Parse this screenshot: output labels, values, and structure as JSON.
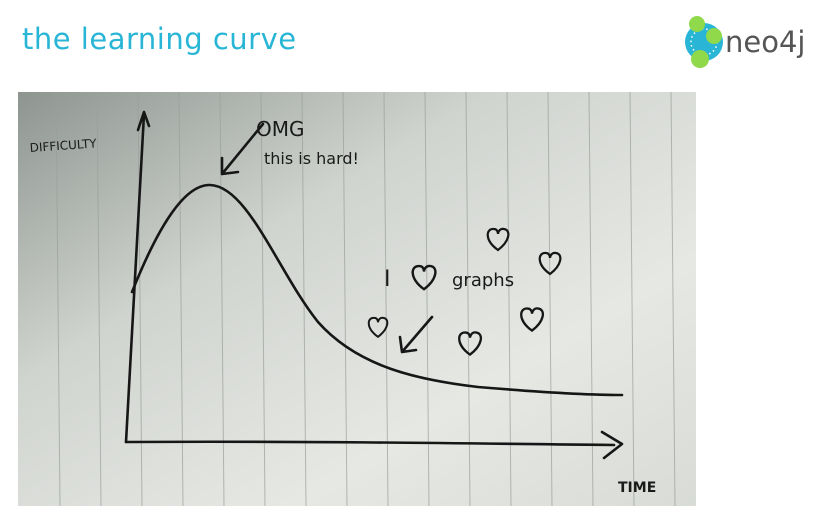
{
  "slide": {
    "title": "the learning curve",
    "logo_text": "neo4j",
    "brand_color": "#29b6d6",
    "logo_accent": "#8fd94a"
  },
  "sketch": {
    "y_axis_label": "DIFFICULTY",
    "x_axis_label": "TIME",
    "peak_annotation_line1": "OMG",
    "peak_annotation_line2": "this is hard!",
    "tail_annotation_i": "I",
    "tail_annotation_word": "graphs",
    "heart_icon": "heart-icon"
  }
}
